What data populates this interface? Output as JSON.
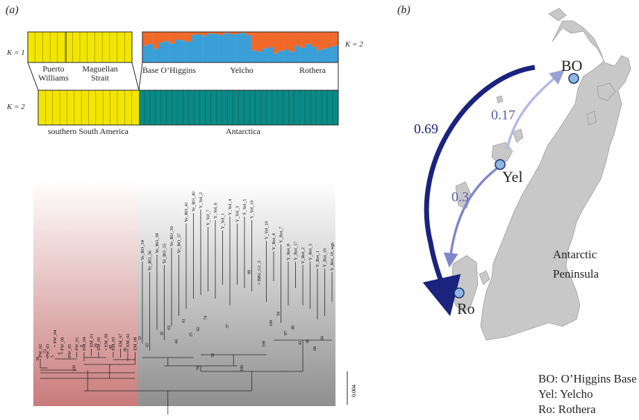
{
  "panel_a_label": "(a)",
  "panel_b_label": "(b)",
  "structure": {
    "k_top_left": "K = 1",
    "k_top_right": "K = 2",
    "k_bottom": "K = 2",
    "groups_top": [
      "Puerto Williams",
      "Maguellan Strait",
      "Base O’Higgins",
      "Yelcho",
      "Rothera"
    ],
    "groups_bottom": [
      "southern South America",
      "Antarctica"
    ],
    "colors": {
      "yellow": "#f2e600",
      "orange": "#f0692a",
      "blue": "#3a9fd6",
      "teal": "#0a8a86"
    },
    "antarctic_blue_fraction": [
      0.55,
      0.6,
      0.45,
      0.65,
      0.7,
      0.62,
      0.75,
      0.72,
      0.68,
      0.9,
      0.92,
      0.88,
      0.95,
      0.93,
      0.9,
      0.96,
      0.92,
      0.94,
      0.97,
      0.9,
      0.4,
      0.35,
      0.45,
      0.5,
      0.3,
      0.38,
      0.42,
      0.35,
      0.55,
      0.48,
      0.6,
      0.52,
      0.4,
      0.45,
      0.5,
      0.55
    ]
  },
  "tree": {
    "tips_sa": [
      "PW_02",
      "PW_03",
      "PW_04",
      "PW_06",
      "PW_05",
      "PW_01",
      "EM_04",
      "EM_01",
      "EM_05",
      "EM_06",
      "EM_03",
      "EM_07",
      "EM_02",
      "EM_08"
    ],
    "tips_ant": [
      "Ye_BO_34",
      "Ye_BO_36",
      "Ye_BO_38",
      "Ye_BO_35",
      "Ye_BO_39",
      "Ye_BO_37",
      "Ye_BO_41",
      "Ye_BO_40",
      "Y_Yel_2",
      "Y_Yel_7",
      "Y_Yel_6",
      "Y_Yel_1",
      "Y_Yel_4",
      "Y_Yel_3",
      "Y_Yel_5",
      "Y_Yel_19",
      "BB2_G1_3",
      "Y_Yel_10",
      "Y_Rot_4",
      "Y_Rot_7",
      "Y_Rot_8",
      "Y_Rot_17",
      "Y_Rot_2",
      "Y_Rot_3",
      "Y_Rot_1",
      "Y_Rot_19",
      "Y_Rot_18_wgs"
    ],
    "support": [
      "38",
      "73",
      "5",
      "4",
      "9",
      "29",
      "40",
      "38",
      "100",
      "52",
      "65",
      "41",
      "63",
      "44",
      "61",
      "25",
      "92",
      "74",
      "37",
      "88",
      "50",
      "100",
      "100",
      "97",
      "41",
      "38",
      "68",
      "66",
      "79",
      "100",
      "94",
      "48"
    ],
    "scale_label": "0.004"
  },
  "map": {
    "sites": [
      {
        "code": "BO",
        "label": "BO"
      },
      {
        "code": "Yel",
        "label": "Yel"
      },
      {
        "code": "Ro",
        "label": "Ro"
      }
    ],
    "flows": [
      {
        "from": "Yel",
        "to": "BO",
        "value": "0.17"
      },
      {
        "from": "BO",
        "to": "Ro",
        "value": "0.69"
      },
      {
        "from": "Yel",
        "to": "Ro",
        "value": "0.3"
      }
    ],
    "region_label_1": "Antarctic",
    "region_label_2": "Peninsula",
    "legend": [
      "BO: O’Higgins Base",
      "Yel: Yelcho",
      "Ro: Rothera"
    ]
  }
}
